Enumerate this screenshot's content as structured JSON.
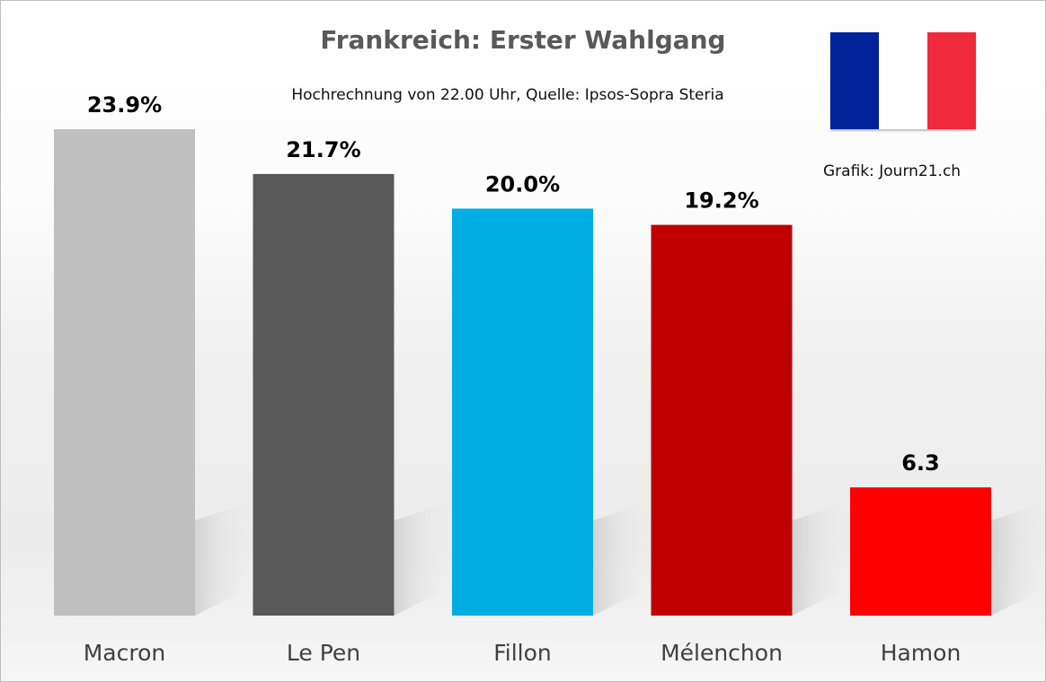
{
  "chart_data": {
    "type": "bar",
    "title": "Frankreich: Erster Wahlgang",
    "subtitle": "Hochrechnung von 22.00 Uhr, Quelle: Ipsos-Sopra Steria",
    "credit": "Grafik: Journ21.ch",
    "categories": [
      "Macron",
      "Le Pen",
      "Fillon",
      "Mélenchon",
      "Hamon"
    ],
    "values": [
      23.9,
      21.7,
      20.0,
      19.2,
      6.3
    ],
    "data_labels": [
      "23.9%",
      "21.7%",
      "20.0%",
      "19.2%",
      "6.3"
    ],
    "colors": [
      "#bfbfbf",
      "#595959",
      "#00aee3",
      "#c00000",
      "#ff0000"
    ],
    "xlabel": "",
    "ylabel": "",
    "ylim": [
      0,
      24
    ],
    "grid": false,
    "legend": "none"
  },
  "flag_colors": [
    "#00239a",
    "#ffffff",
    "#ee2a3c"
  ]
}
